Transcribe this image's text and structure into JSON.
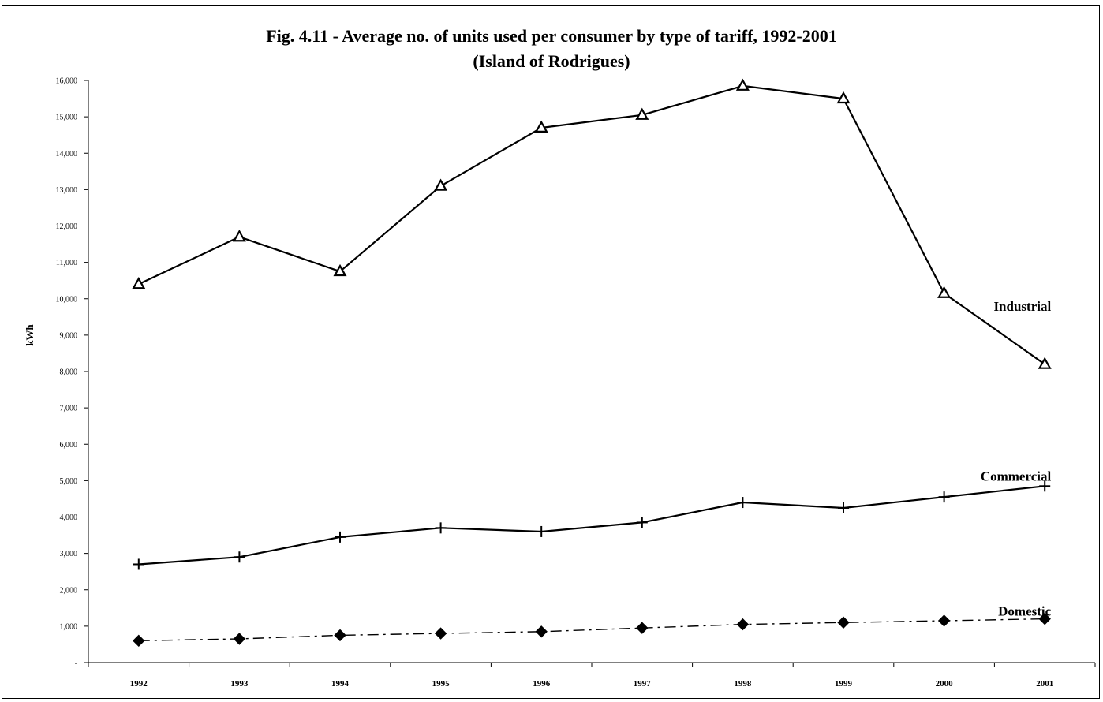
{
  "chart_data": {
    "type": "line",
    "title": "Fig. 4.11 - Average no. of units used per consumer by type of tariff, 1992-2001",
    "subtitle": "(Island of Rodrigues)",
    "xlabel": "",
    "ylabel": "kWh",
    "ylim": [
      0,
      16000
    ],
    "grid": false,
    "categories": [
      "1992",
      "1993",
      "1994",
      "1995",
      "1996",
      "1997",
      "1998",
      "1999",
      "2000",
      "2001"
    ],
    "y_ticks": [
      {
        "value": 0,
        "label": "-"
      },
      {
        "value": 1000,
        "label": "1,000"
      },
      {
        "value": 2000,
        "label": "2,000"
      },
      {
        "value": 3000,
        "label": "3,000"
      },
      {
        "value": 4000,
        "label": "4,000"
      },
      {
        "value": 5000,
        "label": "5,000"
      },
      {
        "value": 6000,
        "label": "6,000"
      },
      {
        "value": 7000,
        "label": "7,000"
      },
      {
        "value": 8000,
        "label": "8,000"
      },
      {
        "value": 9000,
        "label": "9,000"
      },
      {
        "value": 10000,
        "label": "10,000"
      },
      {
        "value": 11000,
        "label": "11,000"
      },
      {
        "value": 12000,
        "label": "12,000"
      },
      {
        "value": 13000,
        "label": "13,000"
      },
      {
        "value": 14000,
        "label": "14,000"
      },
      {
        "value": 15000,
        "label": "15,000"
      },
      {
        "value": 16000,
        "label": "16,000"
      }
    ],
    "series": [
      {
        "name": "Industrial",
        "marker": "triangle-open",
        "line": "solid",
        "values": [
          10400,
          11700,
          10750,
          13100,
          14700,
          15050,
          15850,
          15500,
          10150,
          8200
        ]
      },
      {
        "name": "Commercial",
        "marker": "plus",
        "line": "solid",
        "values": [
          2700,
          2900,
          3450,
          3700,
          3600,
          3850,
          4400,
          4250,
          4550,
          4850
        ]
      },
      {
        "name": "Domestic",
        "marker": "diamond-filled",
        "line": "dash-dot",
        "values": [
          600,
          650,
          750,
          800,
          850,
          950,
          1050,
          1100,
          1150,
          1200
        ]
      }
    ],
    "colors": {
      "line": "#000000",
      "background": "#ffffff"
    }
  }
}
